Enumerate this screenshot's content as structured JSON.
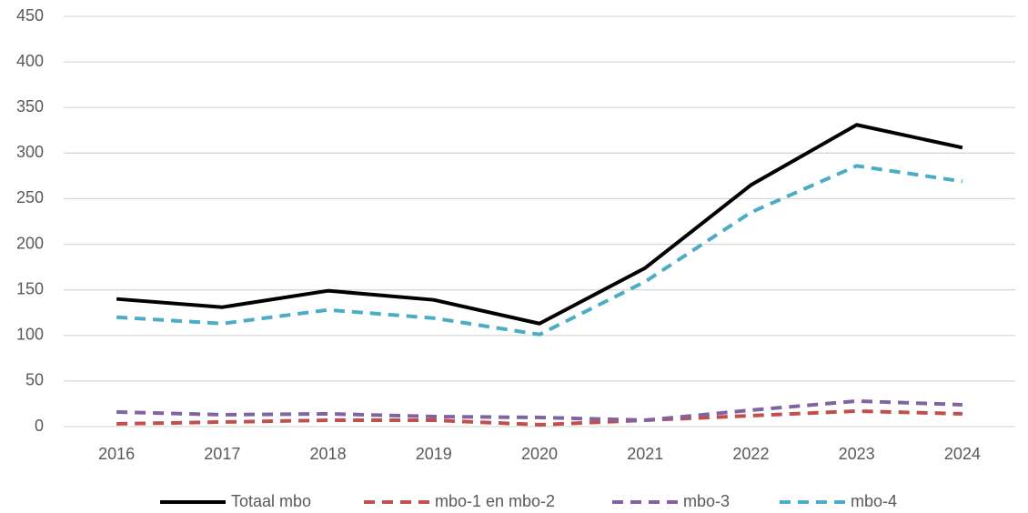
{
  "chart_data": {
    "type": "line",
    "categories": [
      "2016",
      "2017",
      "2018",
      "2019",
      "2020",
      "2021",
      "2022",
      "2023",
      "2024"
    ],
    "series": [
      {
        "name": "Totaal mbo",
        "color": "#000000",
        "dashed": false,
        "values": [
          140,
          131,
          149,
          139,
          113,
          174,
          265,
          331,
          306
        ]
      },
      {
        "name": "mbo-1 en mbo-2",
        "color": "#c0504d",
        "dashed": true,
        "values": [
          3,
          5,
          7,
          7,
          2,
          7,
          12,
          17,
          14
        ]
      },
      {
        "name": "mbo-3",
        "color": "#8064a2",
        "dashed": true,
        "values": [
          16,
          13,
          14,
          11,
          10,
          7,
          18,
          28,
          24
        ]
      },
      {
        "name": "mbo-4",
        "color": "#4bacc6",
        "dashed": true,
        "values": [
          120,
          113,
          128,
          119,
          101,
          159,
          235,
          286,
          269
        ]
      }
    ],
    "ylim": [
      0,
      450
    ],
    "yticks": [
      0,
      50,
      100,
      150,
      200,
      250,
      300,
      350,
      400,
      450
    ],
    "grid": true,
    "legend": "bottom"
  }
}
